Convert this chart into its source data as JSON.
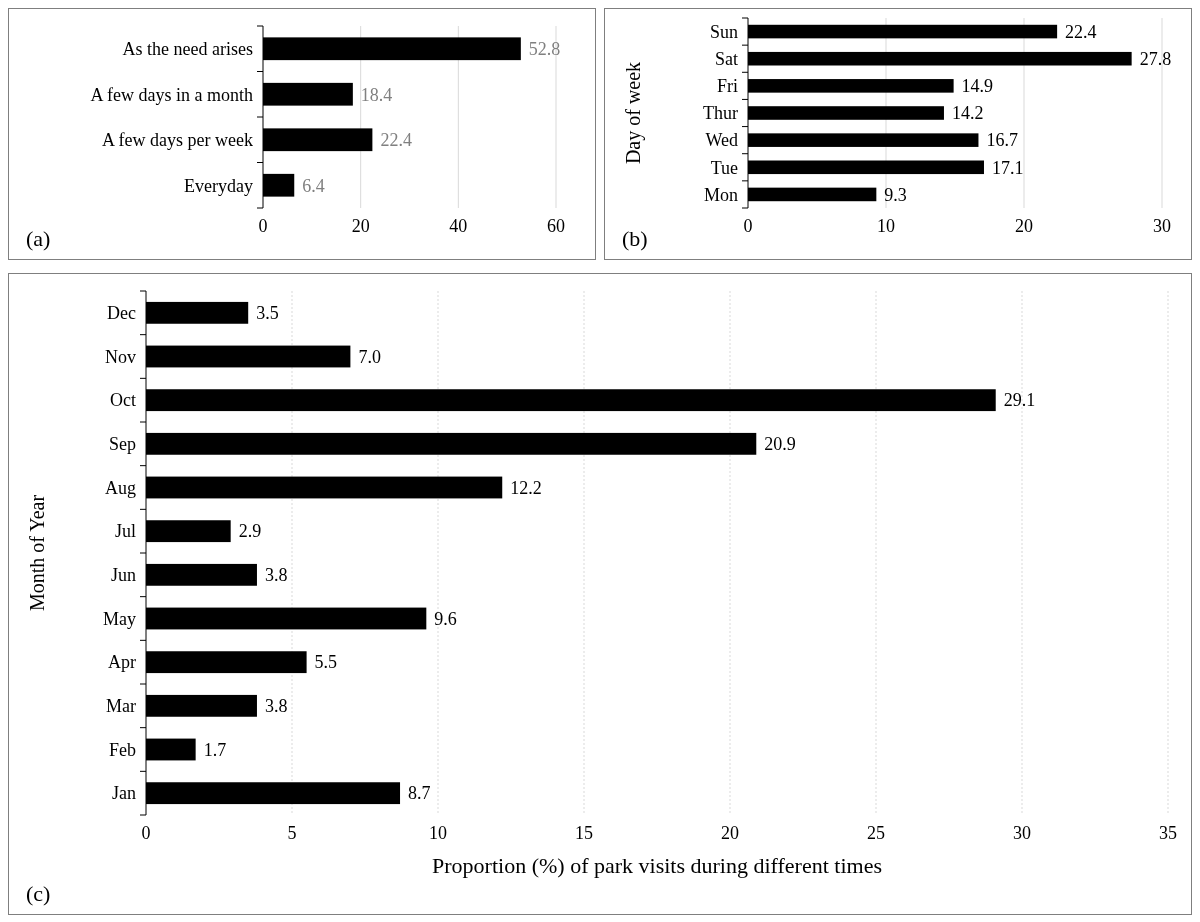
{
  "chart_data": [
    {
      "type": "bar",
      "orientation": "horizontal",
      "categories": [
        "As the need arises",
        "A few days in a month",
        "A few days per week",
        "Everyday"
      ],
      "values": [
        52.8,
        18.4,
        22.4,
        6.4
      ],
      "color": "#000000",
      "xlim": [
        0,
        60
      ],
      "xticks": [
        0,
        20,
        40,
        60
      ],
      "grid": "x",
      "data_labels": true,
      "annotations": [
        "(a)"
      ]
    },
    {
      "type": "bar",
      "orientation": "horizontal",
      "ylabel": "Day of week",
      "categories": [
        "Sun",
        "Sat",
        "Fri",
        "Thur",
        "Wed",
        "Tue",
        "Mon"
      ],
      "values": [
        22.4,
        27.8,
        14.9,
        14.2,
        16.7,
        17.1,
        9.3
      ],
      "color": "#000000",
      "xlim": [
        0,
        30
      ],
      "xticks": [
        0,
        10,
        20,
        30
      ],
      "grid": "x",
      "data_labels": true,
      "annotations": [
        "(b)"
      ]
    },
    {
      "type": "bar",
      "orientation": "horizontal",
      "ylabel": "Month of Year",
      "xlabel": "Proportion (%) of park visits during different times",
      "categories": [
        "Dec",
        "Nov",
        "Oct",
        "Sep",
        "Aug",
        "Jul",
        "Jun",
        "May",
        "Apr",
        "Mar",
        "Feb",
        "Jan"
      ],
      "values": [
        3.5,
        7.0,
        29.1,
        20.9,
        12.2,
        2.9,
        3.8,
        9.6,
        5.5,
        3.8,
        1.7,
        8.7
      ],
      "value_labels": [
        "3.5",
        "7.0",
        "29.1",
        "20.9",
        "12.2",
        "2.9",
        "3.8",
        "9.6",
        "5.5",
        "3.8",
        "1.7",
        "8.7"
      ],
      "color": "#000000",
      "xlim": [
        0,
        35
      ],
      "xticks": [
        0,
        5,
        10,
        15,
        20,
        25,
        30,
        35
      ],
      "grid": "x",
      "annotations": [
        "(c)"
      ]
    }
  ]
}
